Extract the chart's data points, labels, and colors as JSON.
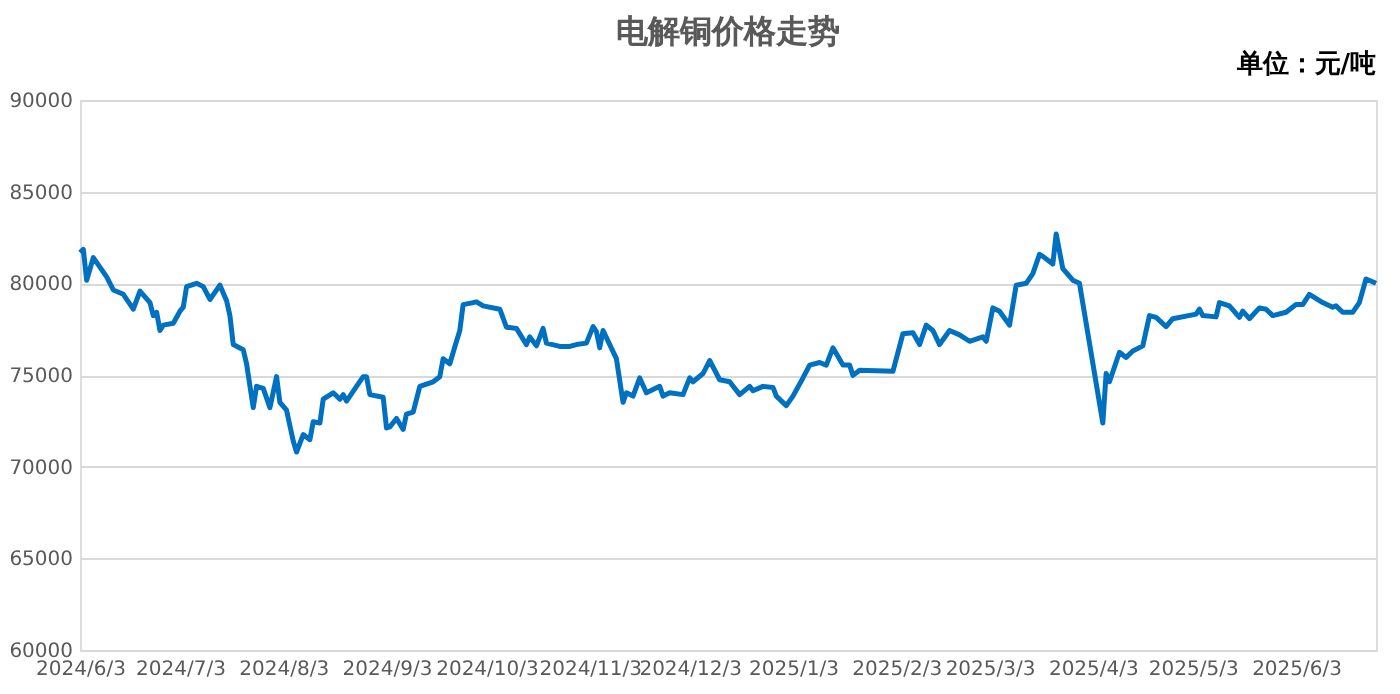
{
  "chart_data": {
    "type": "line",
    "title": "电解铜价格走势",
    "annotations": [
      "单位：元/吨"
    ],
    "x": [
      "2024-06-03",
      "2024-06-04",
      "2024-06-05",
      "2024-06-07",
      "2024-06-11",
      "2024-06-13",
      "2024-06-16",
      "2024-06-19",
      "2024-06-21",
      "2024-06-24",
      "2024-06-25",
      "2024-06-26",
      "2024-06-27",
      "2024-06-28",
      "2024-07-01",
      "2024-07-03",
      "2024-07-04",
      "2024-07-05",
      "2024-07-08",
      "2024-07-10",
      "2024-07-12",
      "2024-07-15",
      "2024-07-17",
      "2024-07-18",
      "2024-07-19",
      "2024-07-22",
      "2024-07-23",
      "2024-07-25",
      "2024-07-26",
      "2024-07-28",
      "2024-07-30",
      "2024-08-01",
      "2024-08-02",
      "2024-08-04",
      "2024-08-06",
      "2024-08-07",
      "2024-08-09",
      "2024-08-11",
      "2024-08-12",
      "2024-08-14",
      "2024-08-15",
      "2024-08-18",
      "2024-08-20",
      "2024-08-21",
      "2024-08-22",
      "2024-08-25",
      "2024-08-27",
      "2024-08-28",
      "2024-08-29",
      "2024-09-02",
      "2024-09-03",
      "2024-09-04",
      "2024-09-06",
      "2024-09-08",
      "2024-09-09",
      "2024-09-11",
      "2024-09-13",
      "2024-09-17",
      "2024-09-19",
      "2024-09-20",
      "2024-09-22",
      "2024-09-24",
      "2024-09-25",
      "2024-09-26",
      "2024-09-29",
      "2024-09-30",
      "2024-10-02",
      "2024-10-07",
      "2024-10-09",
      "2024-10-12",
      "2024-10-15",
      "2024-10-16",
      "2024-10-18",
      "2024-10-20",
      "2024-10-21",
      "2024-10-25",
      "2024-10-28",
      "2024-10-30",
      "2024-11-02",
      "2024-11-04",
      "2024-11-05",
      "2024-11-06",
      "2024-11-07",
      "2024-11-09",
      "2024-11-11",
      "2024-11-13",
      "2024-11-14",
      "2024-11-16",
      "2024-11-18",
      "2024-11-20",
      "2024-11-24",
      "2024-11-25",
      "2024-11-27",
      "2024-12-01",
      "2024-12-03",
      "2024-12-04",
      "2024-12-07",
      "2024-12-09",
      "2024-12-12",
      "2024-12-15",
      "2024-12-18",
      "2024-12-21",
      "2024-12-22",
      "2024-12-25",
      "2024-12-28",
      "2024-12-29",
      "2025-01-01",
      "2025-01-03",
      "2025-01-06",
      "2025-01-08",
      "2025-01-11",
      "2025-01-13",
      "2025-01-15",
      "2025-01-18",
      "2025-01-20",
      "2025-01-21",
      "2025-01-23",
      "2025-02-02",
      "2025-02-05",
      "2025-02-08",
      "2025-02-10",
      "2025-02-12",
      "2025-02-14",
      "2025-02-16",
      "2025-02-19",
      "2025-02-22",
      "2025-02-25",
      "2025-03-01",
      "2025-03-02",
      "2025-03-04",
      "2025-03-06",
      "2025-03-09",
      "2025-03-11",
      "2025-03-14",
      "2025-03-16",
      "2025-03-18",
      "2025-03-19",
      "2025-03-22",
      "2025-03-23",
      "2025-03-25",
      "2025-03-28",
      "2025-03-30",
      "2025-04-06",
      "2025-04-07",
      "2025-04-08",
      "2025-04-11",
      "2025-04-13",
      "2025-04-15",
      "2025-04-18",
      "2025-04-20",
      "2025-04-22",
      "2025-04-25",
      "2025-04-27",
      "2025-05-04",
      "2025-05-05",
      "2025-05-06",
      "2025-05-10",
      "2025-05-11",
      "2025-05-14",
      "2025-05-17",
      "2025-05-18",
      "2025-05-20",
      "2025-05-23",
      "2025-05-25",
      "2025-05-27",
      "2025-05-31",
      "2025-06-03",
      "2025-06-05",
      "2025-06-07",
      "2025-06-11",
      "2025-06-14",
      "2025-06-15",
      "2025-06-17",
      "2025-06-20",
      "2025-06-22",
      "2025-06-24",
      "2025-06-27"
    ],
    "series": [
      {
        "color": "#0070c0",
        "values": [
          81680,
          81850,
          80170,
          81400,
          80350,
          79640,
          79400,
          78590,
          79580,
          78950,
          78240,
          78420,
          77430,
          77720,
          77820,
          78480,
          78700,
          79820,
          80000,
          79820,
          79120,
          79900,
          79050,
          78240,
          76660,
          76380,
          75610,
          73220,
          74380,
          74270,
          73220,
          74910,
          73510,
          73080,
          71400,
          70800,
          71750,
          71470,
          72450,
          72380,
          73680,
          74030,
          73680,
          73930,
          73580,
          74380,
          74910,
          74910,
          73930,
          73790,
          72110,
          72170,
          72630,
          72030,
          72870,
          72980,
          74380,
          74630,
          74910,
          75890,
          75610,
          76840,
          77430,
          78840,
          78950,
          78990,
          78770,
          78590,
          77610,
          77540,
          76660,
          77080,
          76590,
          77540,
          76740,
          76560,
          76560,
          76660,
          76740,
          77640,
          77370,
          76480,
          77430,
          76660,
          75890,
          73510,
          74030,
          73850,
          74840,
          74030,
          74380,
          73850,
          74030,
          73930,
          74840,
          74630,
          75080,
          75790,
          74740,
          74630,
          73930,
          74380,
          74140,
          74380,
          74320,
          73850,
          73330,
          73850,
          74840,
          75540,
          75680,
          75540,
          76480,
          75540,
          75540,
          74980,
          75260,
          75200,
          77250,
          77310,
          76660,
          77720,
          77430,
          76660,
          77430,
          77190,
          76840,
          77080,
          76840,
          78660,
          78480,
          77720,
          79900,
          80000,
          80530,
          81580,
          81470,
          81050,
          82690,
          80800,
          80170,
          80000,
          72380,
          75080,
          74630,
          76240,
          75960,
          76310,
          76590,
          78240,
          78140,
          77640,
          78070,
          78320,
          78590,
          78240,
          78170,
          78950,
          78770,
          78140,
          78480,
          78070,
          78660,
          78590,
          78240,
          78420,
          78840,
          78840,
          79400,
          78950,
          78700,
          78770,
          78420,
          78420,
          78950,
          80240,
          80000
        ]
      }
    ],
    "xlim": [
      "2024-06-03",
      "2025-06-27"
    ],
    "xticks": [
      {
        "value": "2024-06-03",
        "label": "2024/6/3"
      },
      {
        "value": "2024-07-03",
        "label": "2024/7/3"
      },
      {
        "value": "2024-08-03",
        "label": "2024/8/3"
      },
      {
        "value": "2024-09-03",
        "label": "2024/9/3"
      },
      {
        "value": "2024-10-03",
        "label": "2024/10/3"
      },
      {
        "value": "2024-11-03",
        "label": "2024/11/3"
      },
      {
        "value": "2024-12-03",
        "label": "2024/12/3"
      },
      {
        "value": "2025-01-03",
        "label": "2025/1/3"
      },
      {
        "value": "2025-02-03",
        "label": "2025/2/3"
      },
      {
        "value": "2025-03-03",
        "label": "2025/3/3"
      },
      {
        "value": "2025-04-03",
        "label": "2025/4/3"
      },
      {
        "value": "2025-05-03",
        "label": "2025/5/3"
      },
      {
        "value": "2025-06-03",
        "label": "2025/6/3"
      }
    ],
    "ylim": [
      60000,
      90000
    ],
    "yticks": [
      60000,
      65000,
      70000,
      75000,
      80000,
      85000,
      90000
    ],
    "grid": "y",
    "line_style": "solid",
    "marker": "none"
  }
}
